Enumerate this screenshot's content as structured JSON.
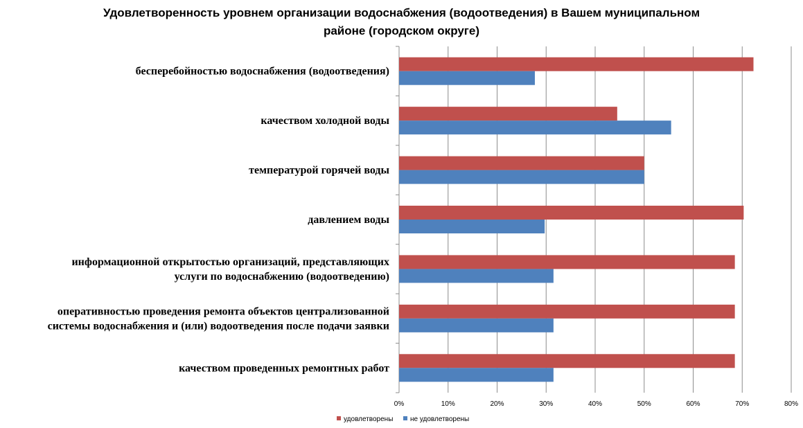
{
  "chart_data": {
    "type": "bar",
    "orientation": "horizontal",
    "title_lines": [
      "Удовлетворенность уровнем организации водоснабжения (водоотведения) в Вашем муниципальном",
      "районе (городском округе)"
    ],
    "categories": [
      [
        "бесперебойностью водоснабжения (водоотведения)"
      ],
      [
        "качеством холодной воды"
      ],
      [
        "температурой горячей воды"
      ],
      [
        "давлением воды"
      ],
      [
        "информационной открытостью организаций, представляющих",
        "услуги по водоснабжению (водоотведению)"
      ],
      [
        "оперативностью проведения ремонта объектов централизованной",
        "системы водоснабжения и (или) водоотведения после подачи заявки"
      ],
      [
        "качеством проведенных ремонтных работ"
      ]
    ],
    "series": [
      {
        "name": "удовлетворены",
        "color": "#C0504D",
        "values": [
          72.3,
          44.5,
          50,
          70.3,
          68.5,
          68.5,
          68.5
        ]
      },
      {
        "name": "не удовлетворены",
        "color": "#4F81BD",
        "values": [
          27.7,
          55.5,
          50,
          29.7,
          31.5,
          31.5,
          31.5
        ]
      }
    ],
    "xlim": [
      0,
      80
    ],
    "xticks": [
      "0%",
      "10%",
      "20%",
      "30%",
      "40%",
      "50%",
      "60%",
      "70%",
      "80%"
    ],
    "grid": true,
    "legend_position": "bottom-center"
  }
}
